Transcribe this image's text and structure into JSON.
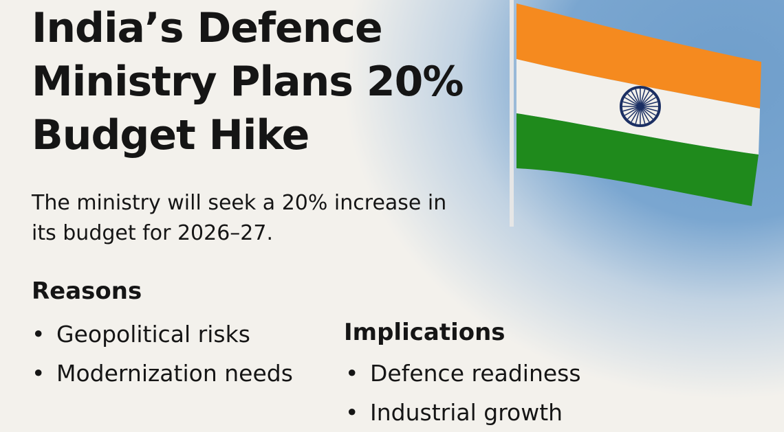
{
  "headline": "India’s Defence Ministry Plans 20% Budget Hike",
  "subheadline": "The ministry will seek a 20% increase in its budget for 2026–27.",
  "reasons": {
    "heading": "Reasons",
    "items": [
      "Geopolitical risks",
      "Modernization needs"
    ]
  },
  "implications": {
    "heading": "Implications",
    "items": [
      "Defence readiness",
      "Industrial growth"
    ]
  },
  "colors": {
    "saffron": "#f58a1f",
    "white": "#f3f1ec",
    "green": "#1f8a1c",
    "chakra": "#1b2f63",
    "sky": "#7aa6d0"
  }
}
